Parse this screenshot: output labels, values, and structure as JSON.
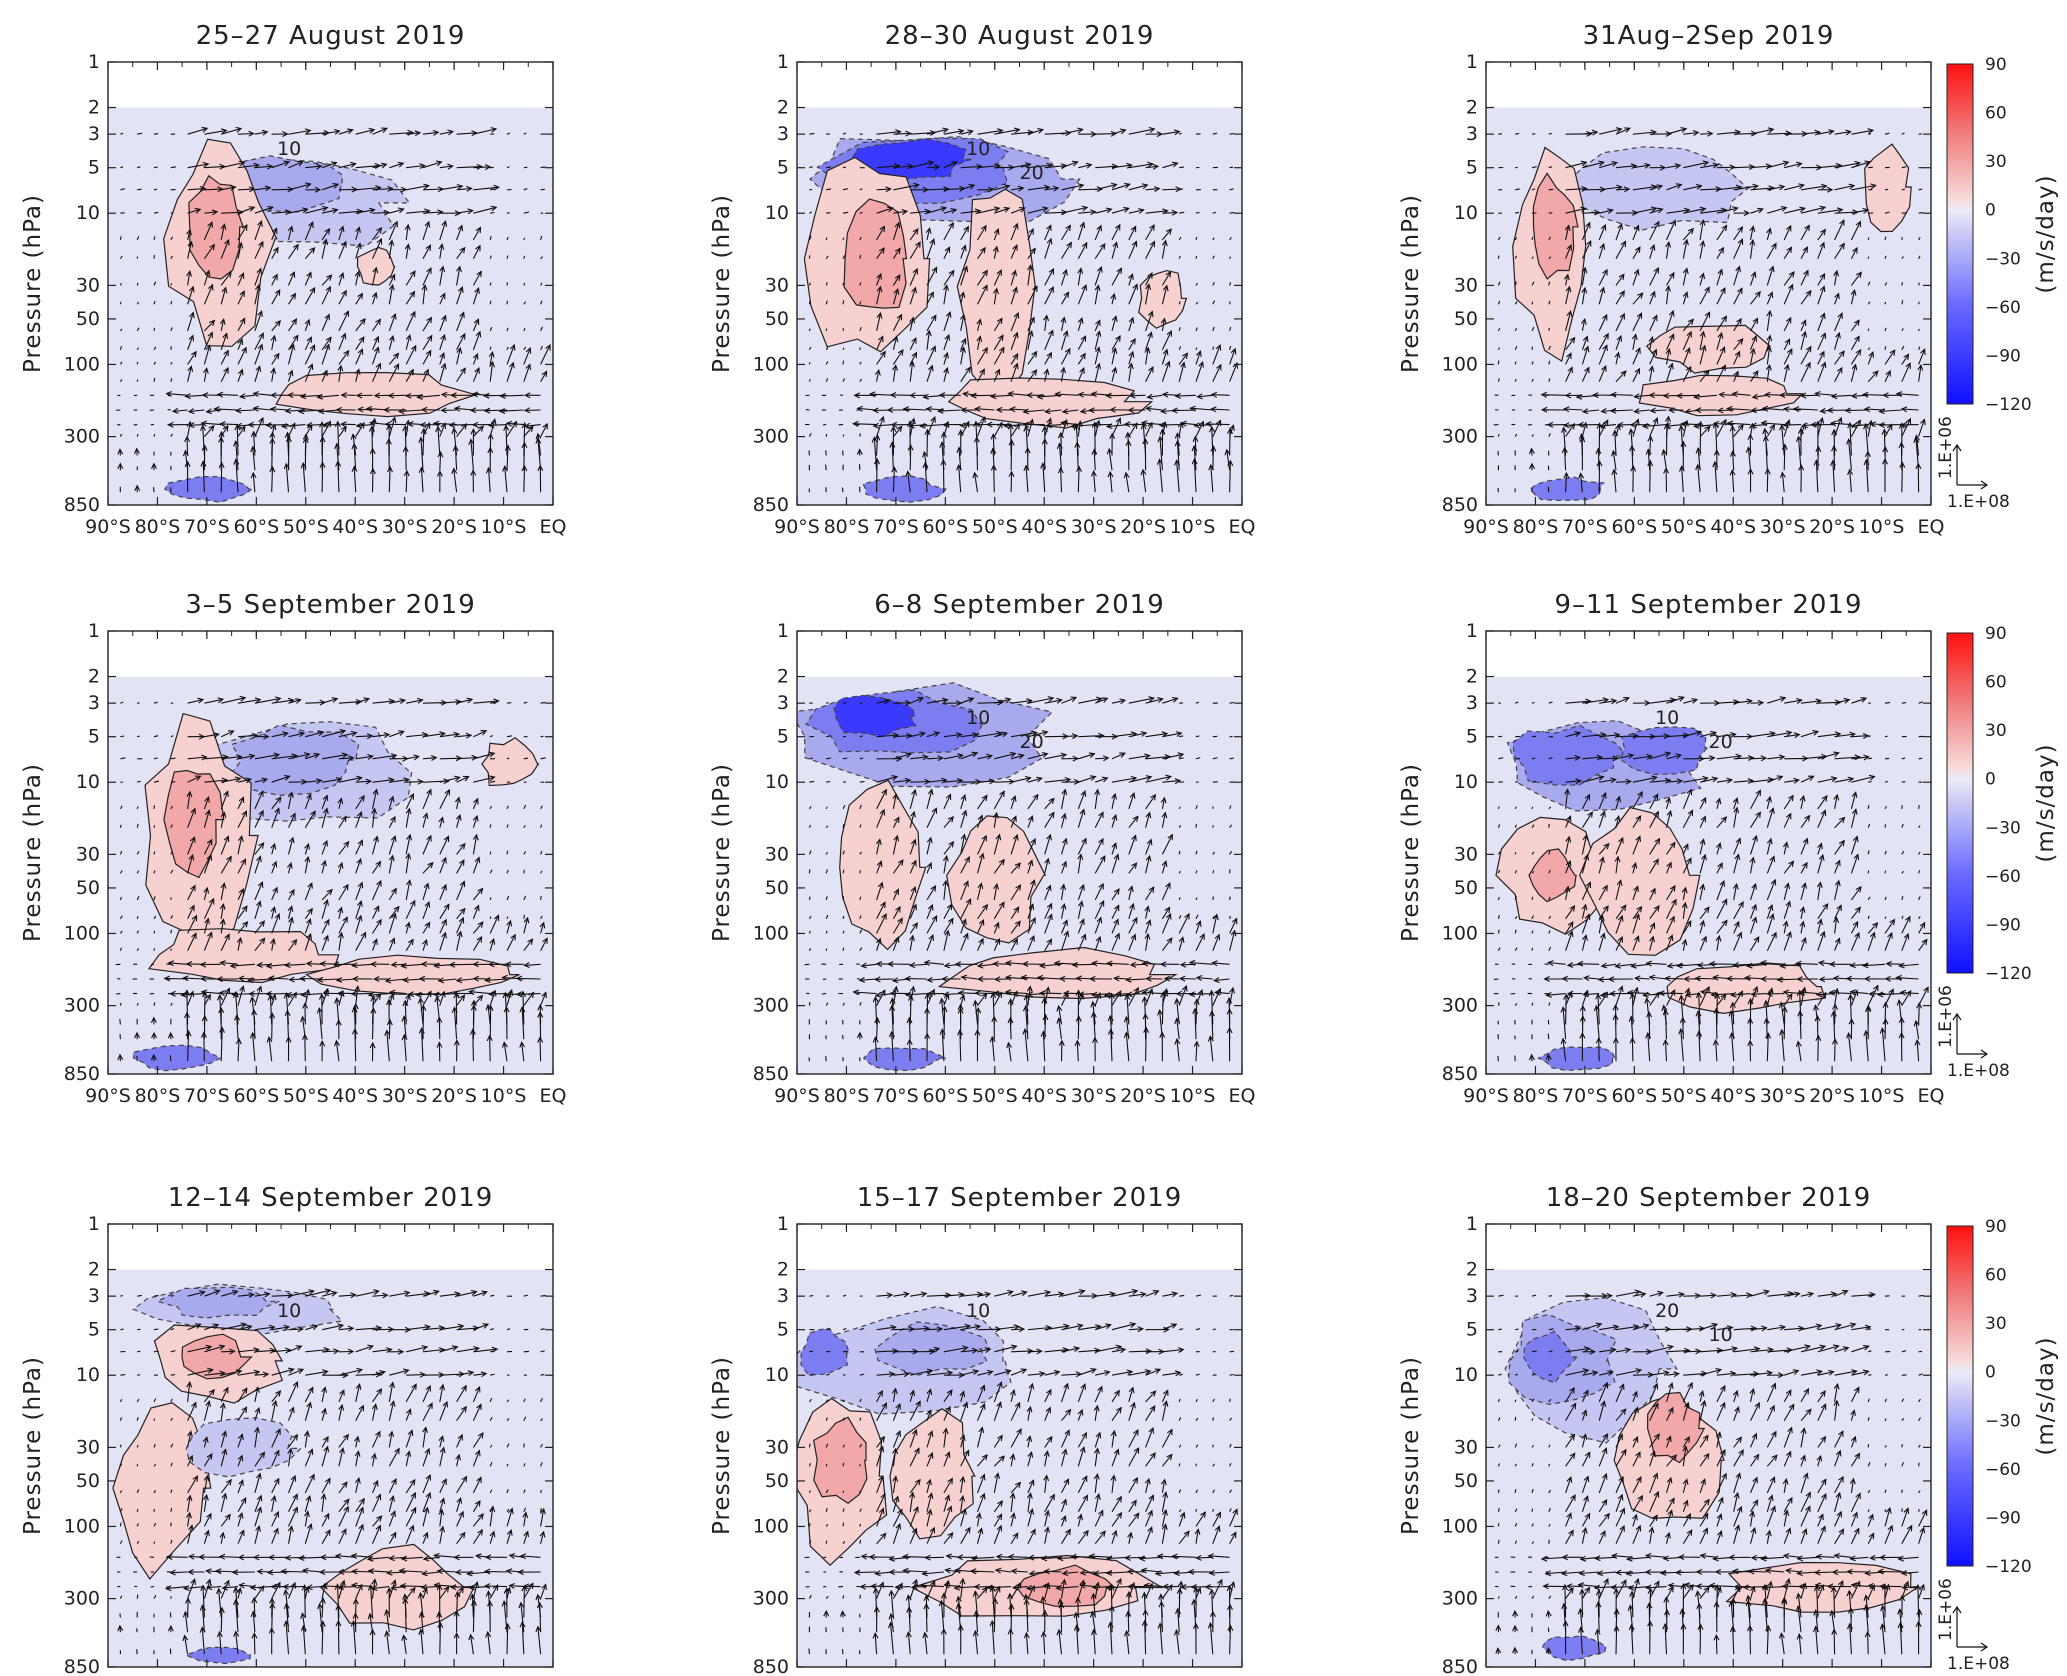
{
  "chart_data": {
    "type": "heatmap",
    "panels": [
      {
        "title": "25–27 August 2019"
      },
      {
        "title": "28–30 August 2019"
      },
      {
        "title": "31Aug–2Sep 2019"
      },
      {
        "title": "3–5 September 2019"
      },
      {
        "title": "6–8 September 2019"
      },
      {
        "title": "9–11 September 2019"
      },
      {
        "title": "12–14 September 2019"
      },
      {
        "title": "15–17 September 2019"
      },
      {
        "title": "18–20 September 2019"
      }
    ],
    "ylabel": "Pressure (hPa)",
    "y_ticks": [
      "1",
      "2",
      "3",
      "5",
      "10",
      "30",
      "50",
      "100",
      "300",
      "850"
    ],
    "x_ticks": [
      "90°S",
      "80°S",
      "70°S",
      "60°S",
      "50°S",
      "40°S",
      "30°S",
      "20°S",
      "10°S",
      "EQ"
    ],
    "ylim": [
      850,
      1
    ],
    "yscale": "log",
    "data_top_pressure": 2,
    "xlim": [
      -90,
      0
    ],
    "colorbar": {
      "label": "(m/s/day)",
      "ticks": [
        "90",
        "60",
        "30",
        "0",
        "−30",
        "−60",
        "−90",
        "−120"
      ],
      "range": [
        -120,
        90
      ],
      "colormap": "blue-white-red",
      "neg_color": "#1010ff",
      "pos_color": "#ff1010"
    },
    "vector_reference": {
      "vertical": "1.E+06",
      "horizontal": "1.E+08"
    },
    "contour_labels": {
      "panel_1": [
        "10"
      ],
      "panel_2": [
        "10",
        "20"
      ],
      "panel_5": [
        "10",
        "20"
      ],
      "panel_6": [
        "10",
        "20"
      ],
      "panel_7": [
        "10"
      ],
      "panel_8": [
        "10"
      ],
      "panel_9": [
        "20",
        "10"
      ]
    },
    "grid": false
  }
}
